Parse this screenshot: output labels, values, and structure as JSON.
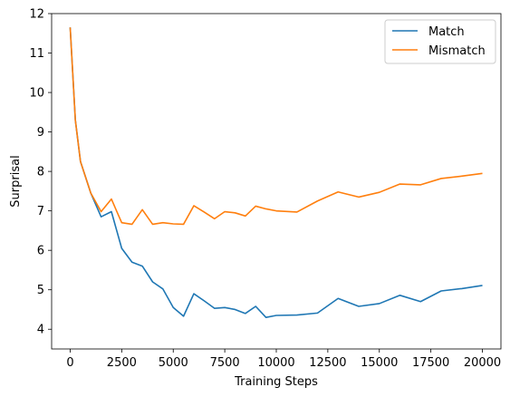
{
  "chart_data": {
    "type": "line",
    "xlabel": "Training Steps",
    "ylabel": "Surprisal",
    "xlim": [
      -900,
      20900
    ],
    "ylim": [
      3.5,
      12.0
    ],
    "x_ticks": [
      0,
      2500,
      5000,
      7500,
      10000,
      12500,
      15000,
      17500,
      20000
    ],
    "y_ticks": [
      4,
      5,
      6,
      7,
      8,
      9,
      10,
      11,
      12
    ],
    "grid": false,
    "legend_position": "top-right",
    "series": [
      {
        "name": "Match",
        "color": "#1f77b4",
        "x": [
          0,
          250,
          500,
          1000,
          1500,
          2000,
          2500,
          3000,
          3500,
          4000,
          4500,
          5000,
          5500,
          6000,
          6500,
          7000,
          7500,
          8000,
          8500,
          9000,
          9500,
          10000,
          11000,
          12000,
          13000,
          14000,
          15000,
          16000,
          17000,
          18000,
          19000,
          20000
        ],
        "y": [
          11.65,
          9.3,
          8.25,
          7.45,
          6.85,
          6.98,
          6.05,
          5.7,
          5.6,
          5.2,
          5.02,
          4.55,
          4.33,
          4.9,
          4.72,
          4.53,
          4.55,
          4.5,
          4.4,
          4.58,
          4.3,
          4.35,
          4.36,
          4.41,
          4.78,
          4.58,
          4.65,
          4.86,
          4.7,
          4.97,
          5.03,
          5.11
        ]
      },
      {
        "name": "Mismatch",
        "color": "#ff7f0e",
        "x": [
          0,
          250,
          500,
          1000,
          1500,
          2000,
          2500,
          3000,
          3500,
          4000,
          4500,
          5000,
          5500,
          6000,
          6500,
          7000,
          7500,
          8000,
          8500,
          9000,
          9500,
          10000,
          11000,
          12000,
          13000,
          14000,
          15000,
          16000,
          17000,
          18000,
          19000,
          20000
        ],
        "y": [
          11.65,
          9.3,
          8.25,
          7.45,
          6.98,
          7.3,
          6.7,
          6.66,
          7.03,
          6.66,
          6.7,
          6.67,
          6.66,
          7.13,
          6.97,
          6.8,
          6.98,
          6.95,
          6.87,
          7.12,
          7.05,
          7.0,
          6.97,
          7.25,
          7.48,
          7.35,
          7.47,
          7.68,
          7.66,
          7.82,
          7.88,
          7.95
        ]
      }
    ]
  }
}
